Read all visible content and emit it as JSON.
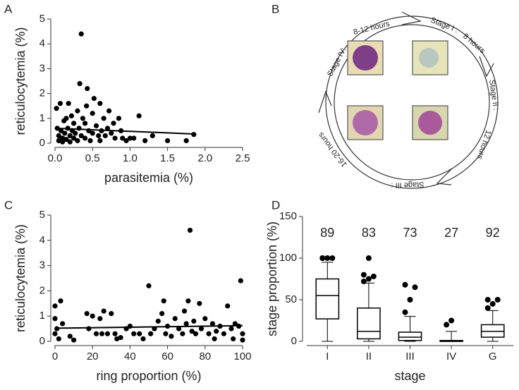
{
  "chart_data": [
    {
      "type": "scatter",
      "panel": "A",
      "xlabel": "parasitemia (%)",
      "ylabel": "reticulocytemia (%)",
      "xlim": [
        0,
        2.5
      ],
      "xticks": [
        {
          "value": 0,
          "label": "0.0"
        },
        {
          "value": 0.5,
          "label": "0.5"
        },
        {
          "value": 1,
          "label": "1.0"
        },
        {
          "value": 1.5,
          "label": "1.5"
        },
        {
          "value": 2,
          "label": "2.0"
        },
        {
          "value": 2.5,
          "label": "2.5"
        }
      ],
      "ylim": [
        0,
        5
      ],
      "yticks": [
        0,
        1,
        2,
        3,
        4,
        5
      ],
      "color": "#000000",
      "x": [
        0.02,
        0.03,
        0.05,
        0.05,
        0.07,
        0.08,
        0.1,
        0.1,
        0.12,
        0.13,
        0.15,
        0.15,
        0.17,
        0.18,
        0.2,
        0.2,
        0.22,
        0.23,
        0.25,
        0.25,
        0.27,
        0.3,
        0.3,
        0.32,
        0.33,
        0.35,
        0.35,
        0.37,
        0.4,
        0.4,
        0.42,
        0.43,
        0.45,
        0.47,
        0.5,
        0.5,
        0.52,
        0.55,
        0.58,
        0.6,
        0.6,
        0.62,
        0.65,
        0.67,
        0.7,
        0.72,
        0.75,
        0.78,
        0.8,
        0.85,
        0.88,
        0.9,
        0.95,
        1.0,
        1.05,
        1.12,
        1.2,
        1.3,
        1.5,
        1.75,
        1.85
      ],
      "y": [
        1.4,
        0.6,
        0.3,
        0.1,
        1.6,
        0.5,
        0.2,
        0.05,
        0.9,
        0.4,
        1.0,
        0.15,
        0.6,
        1.6,
        0.3,
        0.05,
        1.1,
        0.5,
        0.8,
        0.2,
        0.4,
        1.3,
        0.1,
        0.6,
        2.4,
        4.4,
        0.3,
        1.0,
        0.8,
        0.2,
        1.5,
        2.2,
        0.5,
        0.1,
        1.2,
        0.4,
        1.8,
        0.7,
        0.3,
        1.6,
        0.1,
        0.5,
        1.0,
        0.3,
        0.6,
        1.3,
        0.4,
        0.8,
        0.2,
        1.0,
        0.5,
        0.2,
        0.1,
        0.2,
        0.2,
        1.1,
        0.1,
        0.3,
        0.1,
        0.1,
        0.35
      ],
      "fit": {
        "x": [
          0,
          1.85
        ],
        "y": [
          0.6,
          0.37
        ]
      }
    },
    {
      "type": "scatter",
      "panel": "C",
      "xlabel": "ring proportion (%)",
      "ylabel": "reticulocytemia (%)",
      "xlim": [
        0,
        100
      ],
      "xticks": [
        0,
        20,
        40,
        60,
        80,
        100
      ],
      "ylim": [
        0,
        5
      ],
      "yticks": [
        0,
        1,
        2,
        3,
        4,
        5
      ],
      "color": "#000000",
      "x": [
        0,
        0,
        0,
        1,
        2,
        3,
        4,
        8,
        10,
        17,
        18,
        20,
        22,
        24,
        25,
        26,
        28,
        30,
        32,
        33,
        35,
        38,
        40,
        42,
        45,
        47,
        50,
        51,
        53,
        55,
        57,
        58,
        59,
        60,
        62,
        64,
        66,
        68,
        69,
        70,
        71,
        72,
        73,
        74,
        75,
        77,
        78,
        80,
        82,
        84,
        86,
        88,
        90,
        92,
        94,
        96,
        98,
        99,
        100,
        100,
        95,
        85
      ],
      "y": [
        0.3,
        1.4,
        0.9,
        0.5,
        0.1,
        1.6,
        0.7,
        0.2,
        0.05,
        1.1,
        0.5,
        1.0,
        0.3,
        0.9,
        0.3,
        1.2,
        0.3,
        1.1,
        0.3,
        0.1,
        0.15,
        0.5,
        0.6,
        0.3,
        0.3,
        0.1,
        2.2,
        0.3,
        0.5,
        0.8,
        1.1,
        1.6,
        0.3,
        0.6,
        0.2,
        0.9,
        0.5,
        0.3,
        1.2,
        0.7,
        1.6,
        4.4,
        0.4,
        0.8,
        0.3,
        1.5,
        0.5,
        0.9,
        0.3,
        0.7,
        0.4,
        0.6,
        0.3,
        1.4,
        0.5,
        0.7,
        0.6,
        2.4,
        0.3,
        0.05,
        0.1,
        0.1
      ],
      "fit": {
        "x": [
          0,
          100
        ],
        "y": [
          0.52,
          0.62
        ]
      }
    },
    {
      "type": "box",
      "panel": "D",
      "xlabel": "stage",
      "ylabel": "stage proportion (%)",
      "categories": [
        "I",
        "II",
        "III",
        "IV",
        "G"
      ],
      "annotations": [
        89,
        83,
        73,
        27,
        92
      ],
      "ylim": [
        0,
        150
      ],
      "yticks": [
        0,
        50,
        100,
        150
      ],
      "color": "#000000",
      "boxes": [
        {
          "min": 0,
          "q1": 27,
          "median": 55,
          "q3": 75,
          "max": 95,
          "outliers": [
            100,
            100,
            100,
            100
          ]
        },
        {
          "min": 0,
          "q1": 3,
          "median": 12,
          "q3": 40,
          "max": 70,
          "outliers": [
            72,
            75,
            78,
            80,
            100
          ]
        },
        {
          "min": 0,
          "q1": 1,
          "median": 5,
          "q3": 11,
          "max": 30,
          "outliers": [
            35,
            50,
            65,
            68
          ]
        },
        {
          "min": 0,
          "q1": 0,
          "median": 0,
          "q3": 1,
          "max": 12,
          "outliers": [
            20,
            25
          ]
        },
        {
          "min": 0,
          "q1": 5,
          "median": 12,
          "q3": 20,
          "max": 37,
          "outliers": [
            40,
            45,
            50,
            50
          ]
        }
      ]
    }
  ],
  "diagram": {
    "panel": "B",
    "labels": [
      "Stage IV:",
      "8-12 hours",
      "Stage I :",
      "8 hours",
      "Stage II :",
      "12 hours",
      "Stage III :",
      "16-20 hours"
    ]
  }
}
